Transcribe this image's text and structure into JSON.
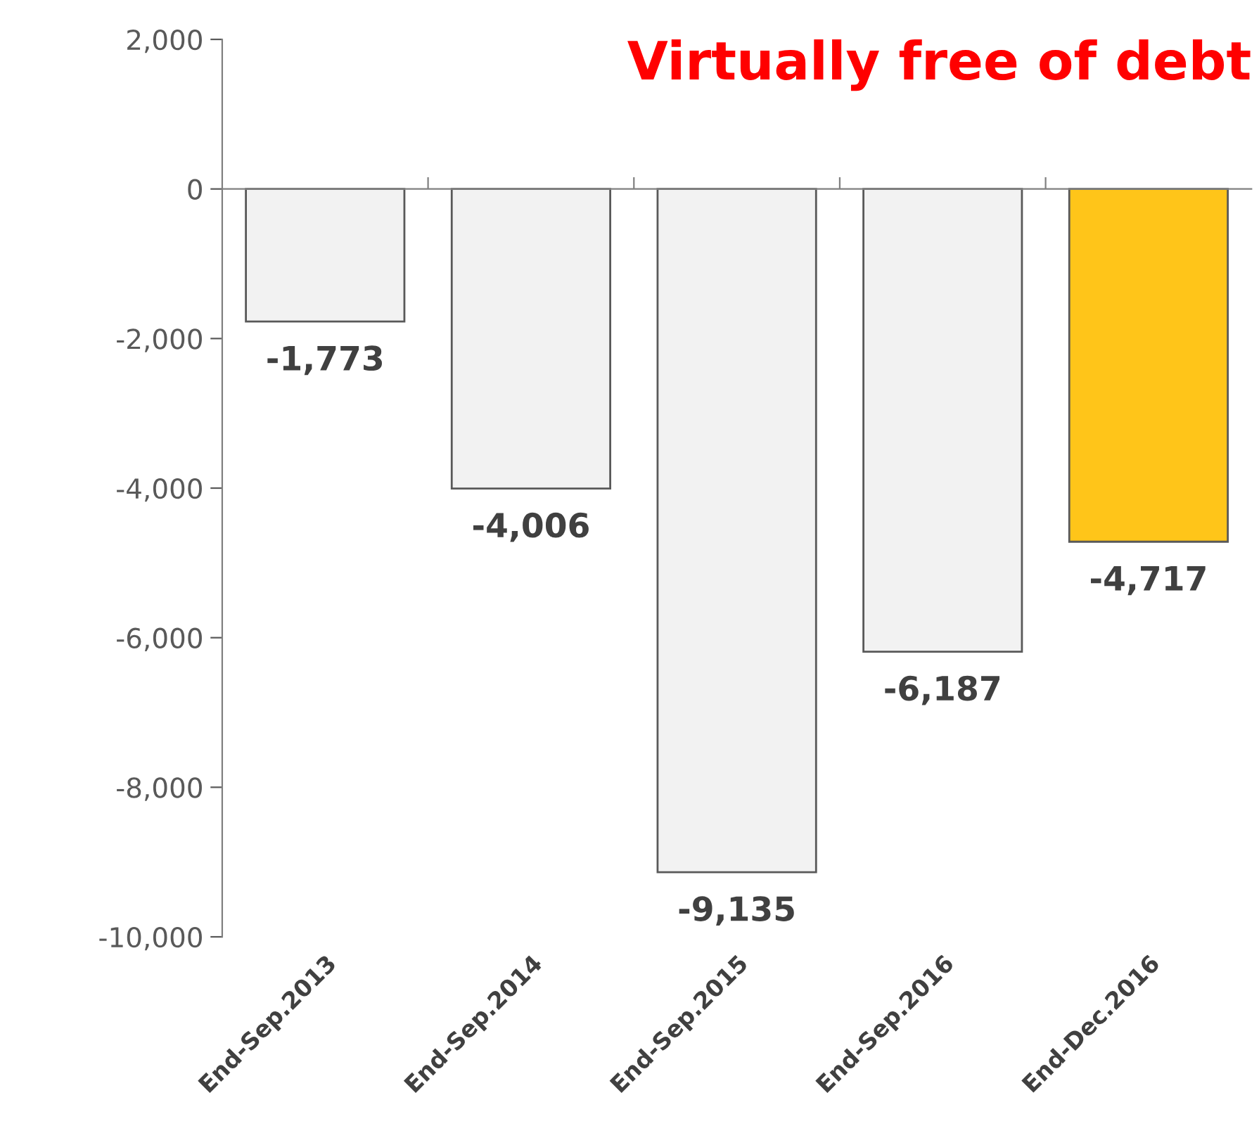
{
  "chart_data": {
    "type": "bar",
    "title": "Virtually free of debt",
    "categories": [
      "End-Sep.2013",
      "End-Sep.2014",
      "End-Sep.2015",
      "End-Sep.2016",
      "End-Dec.2016"
    ],
    "values": [
      -1773,
      -4006,
      -9135,
      -6187,
      -4717
    ],
    "colors": [
      "#f2f2f2",
      "#f2f2f2",
      "#f2f2f2",
      "#f2f2f2",
      "#ffc519"
    ],
    "value_labels": [
      "-1,773",
      "-4,006",
      "-9,135",
      "-6,187",
      "-4,717"
    ],
    "ylim": [
      -10000,
      2000
    ],
    "yticks": [
      {
        "value": -10000,
        "label": "-10,000"
      },
      {
        "value": -8000,
        "label": "-8,000"
      },
      {
        "value": -6000,
        "label": "-6,000"
      },
      {
        "value": -4000,
        "label": "-4,000"
      },
      {
        "value": -2000,
        "label": "-2,000"
      },
      0,
      {
        "value": 2000,
        "label": "2,000"
      }
    ],
    "legend": false
  }
}
